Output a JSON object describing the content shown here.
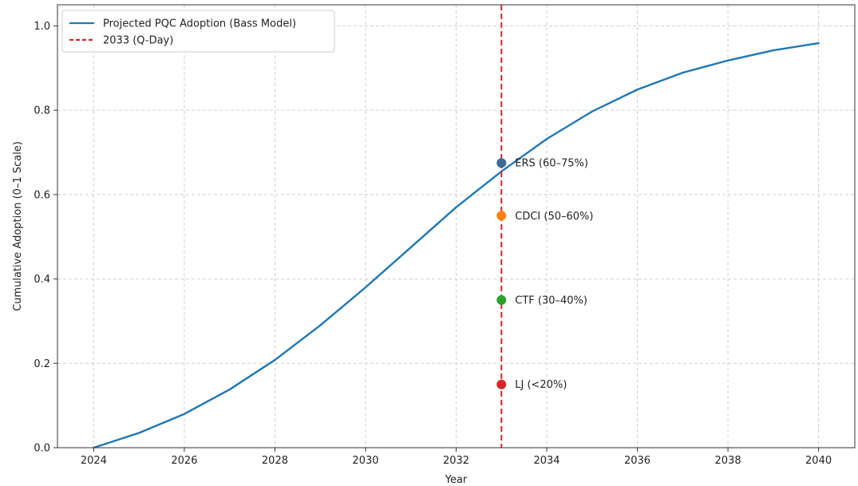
{
  "chart_data": {
    "type": "line",
    "title": "",
    "xlabel": "Year",
    "ylabel": "Cumulative Adoption (0–1 Scale)",
    "xlim": [
      2023.2,
      2040.8
    ],
    "ylim": [
      0,
      1.05
    ],
    "xticks": [
      2024,
      2026,
      2028,
      2030,
      2032,
      2034,
      2036,
      2038,
      2040
    ],
    "xtick_labels": [
      "2024",
      "2026",
      "2028",
      "2030",
      "2032",
      "2034",
      "2036",
      "2038",
      "2040"
    ],
    "yticks": [
      0.0,
      0.2,
      0.4,
      0.6,
      0.8,
      1.0
    ],
    "ytick_labels": [
      "0.0",
      "0.2",
      "0.4",
      "0.6",
      "0.8",
      "1.0"
    ],
    "grid": true,
    "legend_position": "top-left",
    "series": [
      {
        "name": "Projected PQC Adoption (Bass Model)",
        "color": "#1f77b4",
        "style": "solid",
        "x": [
          2024,
          2025,
          2026,
          2027,
          2028,
          2029,
          2030,
          2031,
          2032,
          2033,
          2034,
          2035,
          2036,
          2037,
          2038,
          2039,
          2040
        ],
        "y": [
          0.0,
          0.035,
          0.08,
          0.138,
          0.208,
          0.29,
          0.38,
          0.475,
          0.57,
          0.655,
          0.732,
          0.797,
          0.849,
          0.889,
          0.918,
          0.942,
          0.959
        ]
      }
    ],
    "vlines": [
      {
        "name": "2033 (Q-Day)",
        "x": 2033,
        "color": "#d62728",
        "style": "dashed"
      }
    ],
    "points": [
      {
        "x": 2033,
        "y": 0.675,
        "label": "ERS (60–75%)",
        "color": "#3a6a98"
      },
      {
        "x": 2033,
        "y": 0.55,
        "label": "CDCI (50–60%)",
        "color": "#ff7f0e"
      },
      {
        "x": 2033,
        "y": 0.35,
        "label": "CTF (30–40%)",
        "color": "#2ca02c"
      },
      {
        "x": 2033,
        "y": 0.15,
        "label": "LJ (<20%)",
        "color": "#d62728"
      }
    ]
  }
}
